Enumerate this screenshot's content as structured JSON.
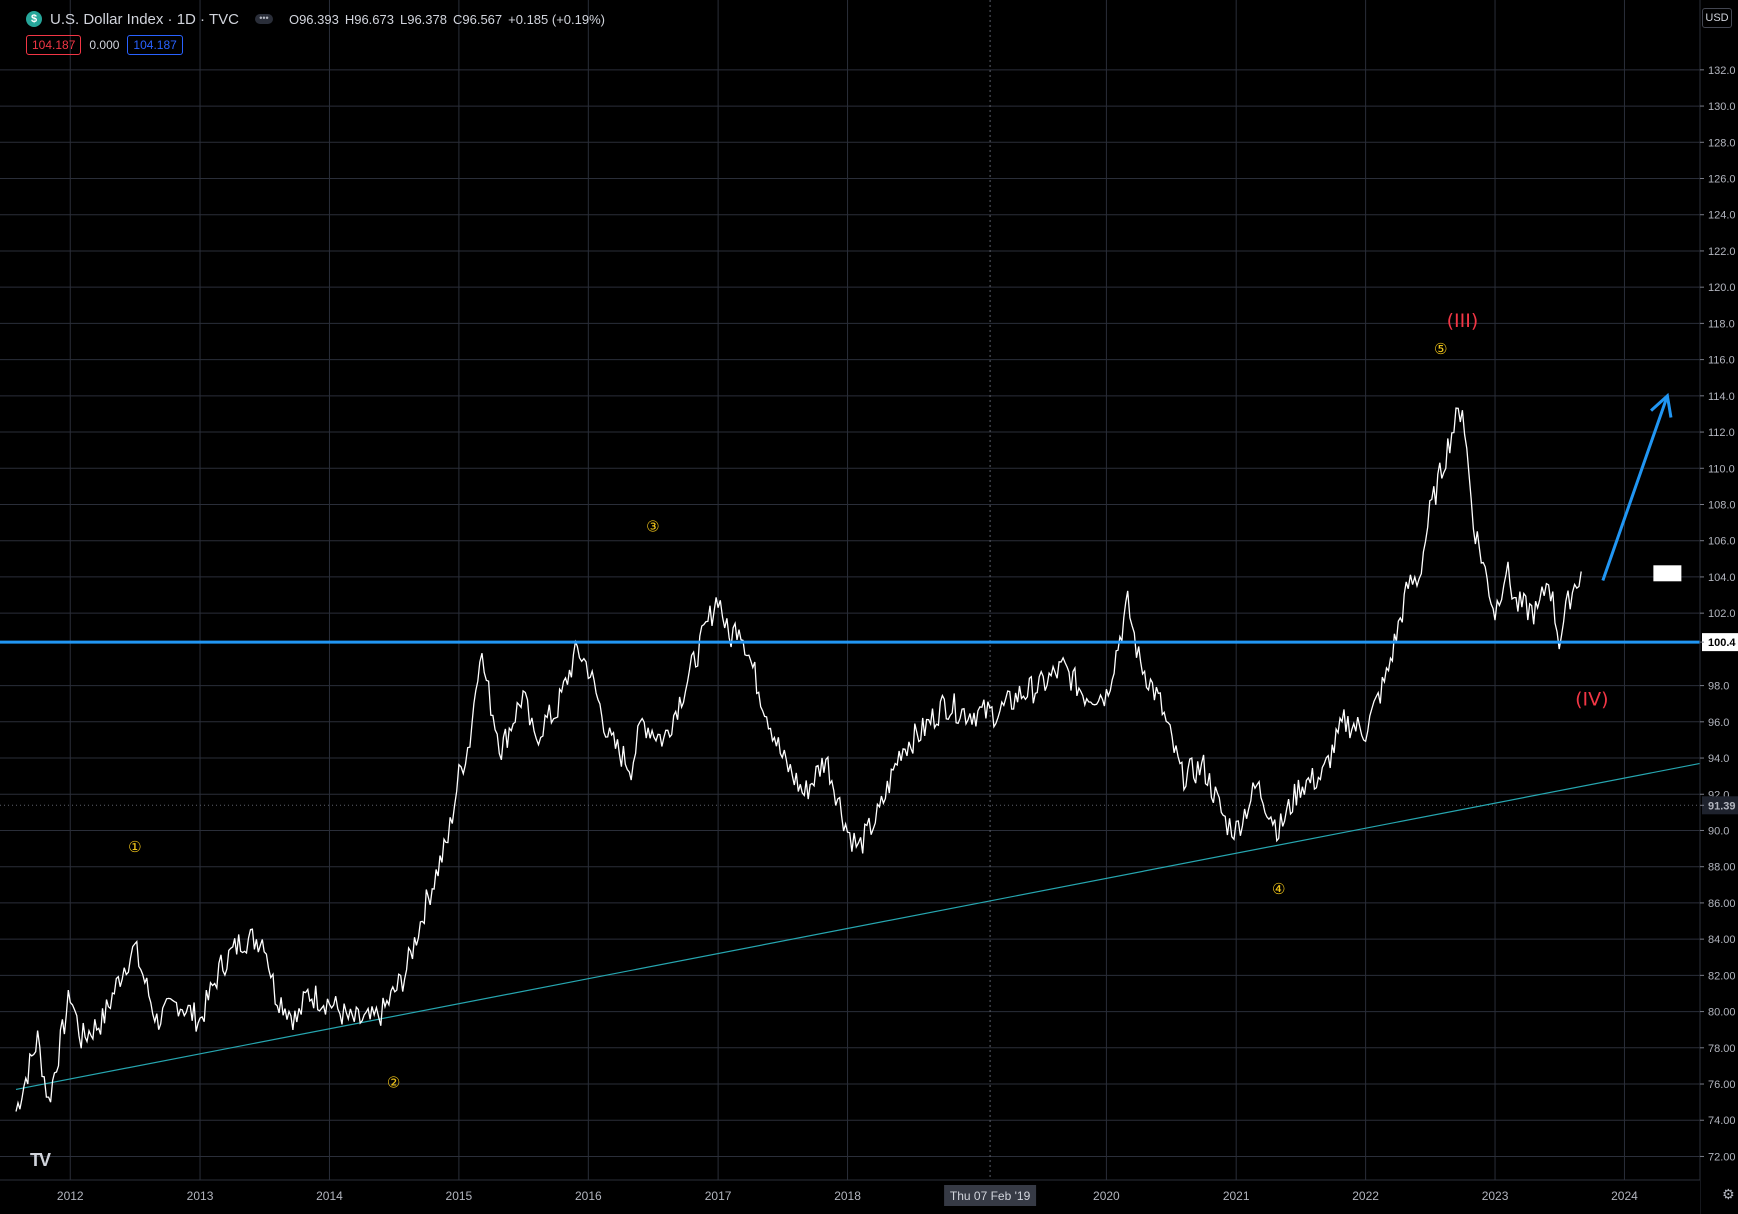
{
  "header": {
    "symbol_icon": "dollar-icon",
    "title": "U.S. Dollar Index · 1D · TVC",
    "open": "O96.393",
    "high": "H96.673",
    "low": "L96.378",
    "close": "C96.567",
    "change": "+0.185 (+0.19%)"
  },
  "indicator": {
    "value1": "104.187",
    "value2": "0.000",
    "value3": "104.187"
  },
  "currency_button": "USD",
  "crosshair_date": "Thu 07 Feb '19",
  "logo": "TV",
  "colors": {
    "background": "#000000",
    "price": "#ffffff",
    "horizontal_line": "#2196f3",
    "trend_line": "#26a6b0",
    "wave_minor": "#f0c419",
    "wave_major": "#f23645",
    "arrow": "#2196f3",
    "grid": "#2a2e39"
  },
  "chart_data": {
    "type": "line",
    "x_axis": {
      "ticks": [
        "2012",
        "2013",
        "2014",
        "2015",
        "2016",
        "2017",
        "2018",
        "2020",
        "2021",
        "2022",
        "2023",
        "2024"
      ],
      "range": [
        "2011-08",
        "2024-08"
      ]
    },
    "y_axis": {
      "side": "right",
      "ticks": [
        "132.0",
        "130.0",
        "128.0",
        "126.0",
        "124.0",
        "122.0",
        "120.0",
        "118.0",
        "116.0",
        "114.0",
        "112.0",
        "110.0",
        "108.0",
        "106.0",
        "104.0",
        "102.0",
        "100.4",
        "98.0",
        "96.0",
        "94.0",
        "92.0",
        "91.39",
        "90.0",
        "88.00",
        "86.00",
        "84.00",
        "82.00",
        "80.00",
        "78.00",
        "76.00",
        "74.00",
        "72.00"
      ],
      "range": [
        70.7,
        134.2
      ]
    },
    "series": [
      {
        "values": [
          [
            "2011-08",
            74.5
          ],
          [
            "2011-10",
            78.5
          ],
          [
            "2011-11",
            75.0
          ],
          [
            "2012-01",
            81.0
          ],
          [
            "2012-02",
            78.5
          ],
          [
            "2012-04",
            79.5
          ],
          [
            "2012-06",
            82.5
          ],
          [
            "2012-07",
            83.5
          ],
          [
            "2012-09",
            79.5
          ],
          [
            "2012-11",
            80.5
          ],
          [
            "2013-01",
            79.5
          ],
          [
            "2013-03",
            82.5
          ],
          [
            "2013-05",
            84.0
          ],
          [
            "2013-07",
            84.0
          ],
          [
            "2013-08",
            81.0
          ],
          [
            "2013-10",
            79.5
          ],
          [
            "2013-11",
            81.0
          ],
          [
            "2014-01",
            80.5
          ],
          [
            "2014-03",
            79.5
          ],
          [
            "2014-05",
            79.5
          ],
          [
            "2014-06",
            80.0
          ],
          [
            "2014-08",
            82.0
          ],
          [
            "2014-10",
            86.0
          ],
          [
            "2014-12",
            89.5
          ],
          [
            "2015-01",
            93.0
          ],
          [
            "2015-02",
            95.0
          ],
          [
            "2015-03",
            100.0
          ],
          [
            "2015-04",
            97.0
          ],
          [
            "2015-05",
            94.5
          ],
          [
            "2015-07",
            97.5
          ],
          [
            "2015-08",
            95.0
          ],
          [
            "2015-09",
            96.0
          ],
          [
            "2015-10",
            96.5
          ],
          [
            "2015-12",
            100.0
          ],
          [
            "2016-01",
            99.0
          ],
          [
            "2016-03",
            95.0
          ],
          [
            "2016-05",
            93.5
          ],
          [
            "2016-06",
            96.0
          ],
          [
            "2016-08",
            95.0
          ],
          [
            "2016-10",
            98.0
          ],
          [
            "2017-01",
            103.0
          ],
          [
            "2017-02",
            100.5
          ],
          [
            "2017-03",
            101.5
          ],
          [
            "2017-05",
            97.5
          ],
          [
            "2017-07",
            94.0
          ],
          [
            "2017-09",
            92.0
          ],
          [
            "2017-11",
            94.0
          ],
          [
            "2018-01",
            90.0
          ],
          [
            "2018-02",
            89.0
          ],
          [
            "2018-04",
            91.0
          ],
          [
            "2018-06",
            94.5
          ],
          [
            "2018-08",
            95.5
          ],
          [
            "2018-10",
            97.0
          ],
          [
            "2018-12",
            96.5
          ],
          [
            "2019-03",
            96.5
          ],
          [
            "2019-05",
            97.5
          ],
          [
            "2019-07",
            98.0
          ],
          [
            "2019-09",
            99.0
          ],
          [
            "2019-11",
            97.5
          ],
          [
            "2020-01",
            97.5
          ],
          [
            "2020-03",
            102.5
          ],
          [
            "2020-04",
            99.5
          ],
          [
            "2020-06",
            97.0
          ],
          [
            "2020-08",
            93.0
          ],
          [
            "2020-10",
            93.5
          ],
          [
            "2020-12",
            90.5
          ],
          [
            "2021-01",
            90.0
          ],
          [
            "2021-03",
            92.5
          ],
          [
            "2021-05",
            90.0
          ],
          [
            "2021-07",
            92.5
          ],
          [
            "2021-09",
            93.0
          ],
          [
            "2021-11",
            96.0
          ],
          [
            "2022-01",
            95.5
          ],
          [
            "2022-03",
            98.5
          ],
          [
            "2022-05",
            103.5
          ],
          [
            "2022-06",
            104.0
          ],
          [
            "2022-07",
            107.5
          ],
          [
            "2022-09",
            112.0
          ],
          [
            "2022-10",
            113.5
          ],
          [
            "2022-11",
            107.0
          ],
          [
            "2023-01",
            102.0
          ],
          [
            "2023-02",
            104.5
          ],
          [
            "2023-03",
            102.5
          ],
          [
            "2023-05",
            102.0
          ],
          [
            "2023-06",
            104.0
          ],
          [
            "2023-07",
            100.5
          ],
          [
            "2023-08",
            103.0
          ],
          [
            "2023-09",
            104.3
          ]
        ]
      }
    ],
    "horizontal_line": {
      "value": 100.4,
      "label": "100.4"
    },
    "dotted_line": {
      "value": 91.39,
      "label": "91.39"
    },
    "trend_line": {
      "from": [
        "2011-08",
        75.7
      ],
      "to": [
        "2024-08",
        93.7
      ]
    },
    "crosshair_x": "2019-02-07",
    "annotations": [
      {
        "text": "①",
        "x": "2012-07",
        "y": 88.8,
        "color": "minor"
      },
      {
        "text": "②",
        "x": "2014-07",
        "y": 75.8,
        "color": "minor"
      },
      {
        "text": "③",
        "x": "2016-07",
        "y": 106.5,
        "color": "minor"
      },
      {
        "text": "④",
        "x": "2021-05",
        "y": 86.5,
        "color": "minor"
      },
      {
        "text": "⑤",
        "x": "2022-08",
        "y": 116.3,
        "color": "minor"
      },
      {
        "text": "(III)",
        "x": "2022-10",
        "y": 117.8,
        "color": "major"
      },
      {
        "text": "(IV)",
        "x": "2023-10",
        "y": 96.9,
        "color": "major"
      }
    ],
    "arrow": {
      "from": [
        "2023-11",
        103.8
      ],
      "to": [
        "2024-05",
        114.0
      ]
    },
    "current_price_box": {
      "x": "2024-05",
      "y": 104.2
    },
    "grid": true
  }
}
